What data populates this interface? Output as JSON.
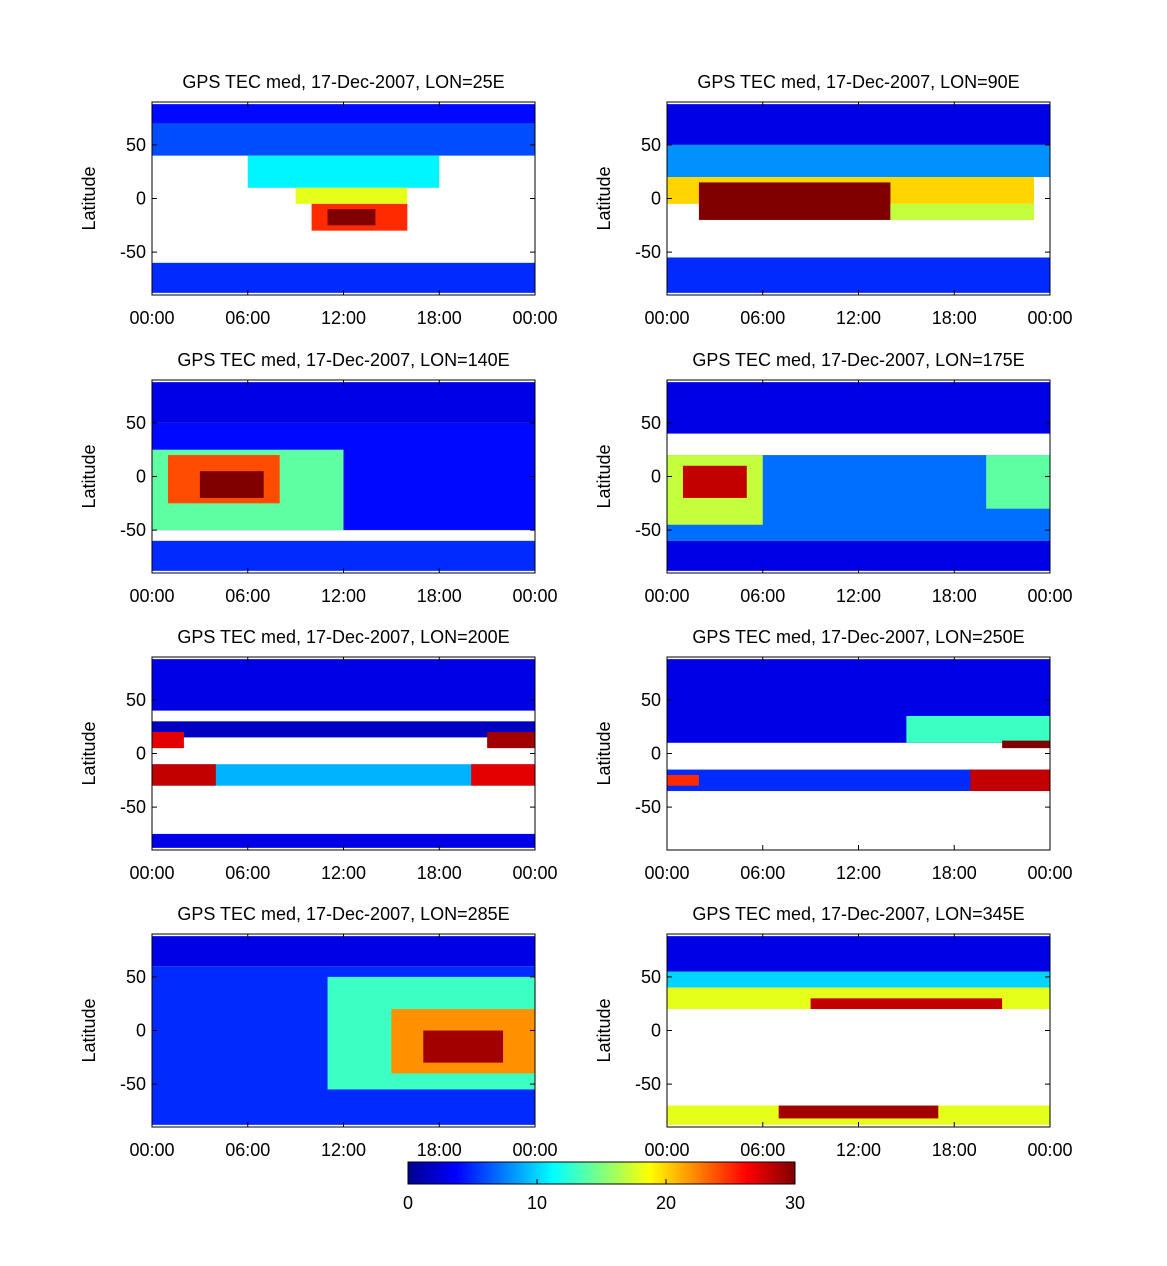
{
  "figure": {
    "colormap": "jet",
    "colorbar": {
      "range": [
        0,
        30
      ],
      "ticks": [
        "0",
        "10",
        "20",
        "30"
      ]
    }
  },
  "chart_data": [
    {
      "type": "heatmap",
      "title": "GPS TEC med, 17-Dec-2007, LON=25E",
      "ylabel": "Latitude",
      "xlim": [
        0,
        24
      ],
      "ylim": [
        -90,
        90
      ],
      "xticks": [
        "00:00",
        "06:00",
        "12:00",
        "18:00",
        "00:00"
      ],
      "yticks": [
        "50",
        "0",
        "-50"
      ],
      "cells": [
        {
          "t0": 0,
          "t1": 24,
          "lat0": 70,
          "lat1": 88,
          "v": 4
        },
        {
          "t0": 0,
          "t1": 24,
          "lat0": 40,
          "lat1": 70,
          "v": 6
        },
        {
          "t0": 6,
          "t1": 18,
          "lat0": 10,
          "lat1": 40,
          "v": 11
        },
        {
          "t0": 9,
          "t1": 16,
          "lat0": -5,
          "lat1": 10,
          "v": 18
        },
        {
          "t0": 10,
          "t1": 16,
          "lat0": -30,
          "lat1": -5,
          "v": 25
        },
        {
          "t0": 11,
          "t1": 14,
          "lat0": -25,
          "lat1": -10,
          "v": 30
        },
        {
          "t0": 0,
          "t1": 24,
          "lat0": -88,
          "lat1": -60,
          "v": 5
        }
      ]
    },
    {
      "type": "heatmap",
      "title": "GPS TEC med, 17-Dec-2007, LON=90E",
      "ylabel": "Latitude",
      "xlim": [
        0,
        24
      ],
      "ylim": [
        -90,
        90
      ],
      "xticks": [
        "00:00",
        "06:00",
        "12:00",
        "18:00",
        "00:00"
      ],
      "yticks": [
        "50",
        "0",
        "-50"
      ],
      "cells": [
        {
          "t0": 0,
          "t1": 24,
          "lat0": 50,
          "lat1": 88,
          "v": 3
        },
        {
          "t0": 0,
          "t1": 24,
          "lat0": 20,
          "lat1": 50,
          "v": 8
        },
        {
          "t0": 0,
          "t1": 23,
          "lat0": -5,
          "lat1": 20,
          "v": 20
        },
        {
          "t0": 2,
          "t1": 14,
          "lat0": -20,
          "lat1": 15,
          "v": 30
        },
        {
          "t0": 14,
          "t1": 23,
          "lat0": -20,
          "lat1": -5,
          "v": 17
        },
        {
          "t0": 0,
          "t1": 24,
          "lat0": -88,
          "lat1": -55,
          "v": 5
        }
      ]
    },
    {
      "type": "heatmap",
      "title": "GPS TEC med, 17-Dec-2007, LON=140E",
      "ylabel": "Latitude",
      "xlim": [
        0,
        24
      ],
      "ylim": [
        -90,
        90
      ],
      "xticks": [
        "00:00",
        "06:00",
        "12:00",
        "18:00",
        "00:00"
      ],
      "yticks": [
        "50",
        "0",
        "-50"
      ],
      "cells": [
        {
          "t0": 0,
          "t1": 24,
          "lat0": 50,
          "lat1": 88,
          "v": 3
        },
        {
          "t0": 0,
          "t1": 24,
          "lat0": -50,
          "lat1": 50,
          "v": 4
        },
        {
          "t0": 0,
          "t1": 12,
          "lat0": -50,
          "lat1": 25,
          "v": 14
        },
        {
          "t0": 1,
          "t1": 8,
          "lat0": -25,
          "lat1": 20,
          "v": 24
        },
        {
          "t0": 3,
          "t1": 7,
          "lat0": -20,
          "lat1": 5,
          "v": 30
        },
        {
          "t0": 0,
          "t1": 24,
          "lat0": -88,
          "lat1": -60,
          "v": 5
        }
      ]
    },
    {
      "type": "heatmap",
      "title": "GPS TEC med, 17-Dec-2007, LON=175E",
      "ylabel": "Latitude",
      "xlim": [
        0,
        24
      ],
      "ylim": [
        -90,
        90
      ],
      "xticks": [
        "00:00",
        "06:00",
        "12:00",
        "18:00",
        "00:00"
      ],
      "yticks": [
        "50",
        "0",
        "-50"
      ],
      "cells": [
        {
          "t0": 0,
          "t1": 24,
          "lat0": 40,
          "lat1": 88,
          "v": 3
        },
        {
          "t0": 0,
          "t1": 24,
          "lat0": -60,
          "lat1": 20,
          "v": 7
        },
        {
          "t0": 0,
          "t1": 6,
          "lat0": -45,
          "lat1": 20,
          "v": 17
        },
        {
          "t0": 1,
          "t1": 5,
          "lat0": -20,
          "lat1": 10,
          "v": 28
        },
        {
          "t0": 20,
          "t1": 24,
          "lat0": -30,
          "lat1": 20,
          "v": 14
        },
        {
          "t0": 0,
          "t1": 24,
          "lat0": -88,
          "lat1": -60,
          "v": 3
        }
      ]
    },
    {
      "type": "heatmap",
      "title": "GPS TEC med, 17-Dec-2007, LON=200E",
      "ylabel": "Latitude",
      "xlim": [
        0,
        24
      ],
      "ylim": [
        -90,
        90
      ],
      "xticks": [
        "00:00",
        "06:00",
        "12:00",
        "18:00",
        "00:00"
      ],
      "yticks": [
        "50",
        "0",
        "-50"
      ],
      "cells": [
        {
          "t0": 0,
          "t1": 24,
          "lat0": 40,
          "lat1": 88,
          "v": 3
        },
        {
          "t0": 0,
          "t1": 24,
          "lat0": 15,
          "lat1": 30,
          "v": 2
        },
        {
          "t0": 0,
          "t1": 2,
          "lat0": 5,
          "lat1": 20,
          "v": 27
        },
        {
          "t0": 21,
          "t1": 24,
          "lat0": 5,
          "lat1": 20,
          "v": 29
        },
        {
          "t0": 0,
          "t1": 24,
          "lat0": -30,
          "lat1": -10,
          "v": 9
        },
        {
          "t0": 0,
          "t1": 4,
          "lat0": -30,
          "lat1": -10,
          "v": 28
        },
        {
          "t0": 20,
          "t1": 24,
          "lat0": -30,
          "lat1": -10,
          "v": 27
        },
        {
          "t0": 0,
          "t1": 24,
          "lat0": -88,
          "lat1": -75,
          "v": 3
        }
      ]
    },
    {
      "type": "heatmap",
      "title": "GPS TEC med, 17-Dec-2007, LON=250E",
      "ylabel": "Latitude",
      "xlim": [
        0,
        24
      ],
      "ylim": [
        -90,
        90
      ],
      "xticks": [
        "00:00",
        "06:00",
        "12:00",
        "18:00",
        "00:00"
      ],
      "yticks": [
        "50",
        "0",
        "-50"
      ],
      "cells": [
        {
          "t0": 0,
          "t1": 24,
          "lat0": 10,
          "lat1": 88,
          "v": 3
        },
        {
          "t0": 15,
          "t1": 24,
          "lat0": 10,
          "lat1": 35,
          "v": 13
        },
        {
          "t0": 21,
          "t1": 24,
          "lat0": 5,
          "lat1": 12,
          "v": 30
        },
        {
          "t0": 0,
          "t1": 24,
          "lat0": -35,
          "lat1": -15,
          "v": 5
        },
        {
          "t0": 0,
          "t1": 2,
          "lat0": -30,
          "lat1": -20,
          "v": 25
        },
        {
          "t0": 19,
          "t1": 24,
          "lat0": -35,
          "lat1": -15,
          "v": 28
        }
      ]
    },
    {
      "type": "heatmap",
      "title": "GPS TEC med, 17-Dec-2007, LON=285E",
      "ylabel": "Latitude",
      "xlim": [
        0,
        24
      ],
      "ylim": [
        -90,
        90
      ],
      "xticks": [
        "00:00",
        "06:00",
        "12:00",
        "18:00",
        "00:00"
      ],
      "yticks": [
        "50",
        "0",
        "-50"
      ],
      "cells": [
        {
          "t0": 0,
          "t1": 24,
          "lat0": 60,
          "lat1": 88,
          "v": 3
        },
        {
          "t0": 0,
          "t1": 24,
          "lat0": -88,
          "lat1": 60,
          "v": 5
        },
        {
          "t0": 11,
          "t1": 24,
          "lat0": -55,
          "lat1": 50,
          "v": 13
        },
        {
          "t0": 15,
          "t1": 24,
          "lat0": -40,
          "lat1": 20,
          "v": 22
        },
        {
          "t0": 17,
          "t1": 22,
          "lat0": -30,
          "lat1": 0,
          "v": 29
        }
      ]
    },
    {
      "type": "heatmap",
      "title": "GPS TEC med, 17-Dec-2007, LON=345E",
      "ylabel": "Latitude",
      "xlim": [
        0,
        24
      ],
      "ylim": [
        -90,
        90
      ],
      "xticks": [
        "00:00",
        "06:00",
        "12:00",
        "18:00",
        "00:00"
      ],
      "yticks": [
        "50",
        "0",
        "-50"
      ],
      "cells": [
        {
          "t0": 0,
          "t1": 24,
          "lat0": 55,
          "lat1": 88,
          "v": 3
        },
        {
          "t0": 0,
          "t1": 24,
          "lat0": 40,
          "lat1": 55,
          "v": 10
        },
        {
          "t0": 0,
          "t1": 24,
          "lat0": 20,
          "lat1": 40,
          "v": 18
        },
        {
          "t0": 9,
          "t1": 21,
          "lat0": 20,
          "lat1": 30,
          "v": 28
        },
        {
          "t0": 0,
          "t1": 24,
          "lat0": -88,
          "lat1": -70,
          "v": 18
        },
        {
          "t0": 7,
          "t1": 17,
          "lat0": -82,
          "lat1": -70,
          "v": 29
        }
      ]
    }
  ]
}
